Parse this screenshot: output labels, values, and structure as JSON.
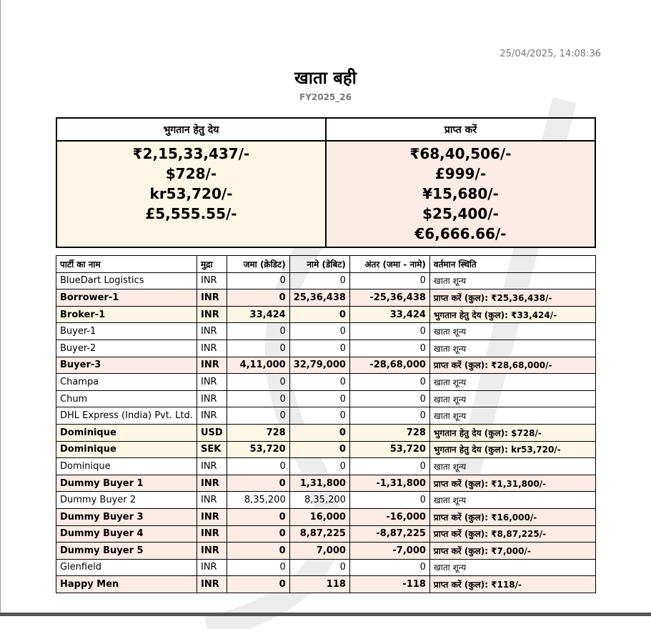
{
  "timestamp": "25/04/2025, 14:08:36",
  "title": "खाता बही",
  "subtitle": "FY2025_26",
  "colors": {
    "payable_bg": "#fdf6e4",
    "receivable_bg": "#fdebe5"
  },
  "summary": {
    "payable_header": "भुगतान हेतु देय",
    "receivable_header": "प्राप्त करें",
    "payable": [
      "₹2,15,33,437/-",
      "$728/-",
      "kr53,720/-",
      "£5,555.55/-"
    ],
    "receivable": [
      "₹68,40,506/-",
      "£999/-",
      "¥15,680/-",
      "$25,400/-",
      "€6,666.66/-"
    ]
  },
  "ledger": {
    "headers": [
      "पार्टी का नाम",
      "मुद्रा",
      "जमा (क्रेडिट)",
      "नामे (डेबिट)",
      "अंतर (जमा - नामे)",
      "वर्तमान स्थिति"
    ],
    "rows": [
      {
        "type": "zero",
        "name": "BlueDart Logistics",
        "currency": "INR",
        "credit": "0",
        "debit": "0",
        "diff": "0",
        "status": "खाता शून्य"
      },
      {
        "type": "receive",
        "name": "Borrower-1",
        "currency": "INR",
        "credit": "0",
        "debit": "25,36,438",
        "diff": "-25,36,438",
        "status": "प्राप्त करें (कुल): ₹25,36,438/-"
      },
      {
        "type": "pay",
        "name": "Broker-1",
        "currency": "INR",
        "credit": "33,424",
        "debit": "0",
        "diff": "33,424",
        "status": "भुगतान हेतु देय (कुल): ₹33,424/-"
      },
      {
        "type": "zero",
        "name": "Buyer-1",
        "currency": "INR",
        "credit": "0",
        "debit": "0",
        "diff": "0",
        "status": "खाता शून्य"
      },
      {
        "type": "zero",
        "name": "Buyer-2",
        "currency": "INR",
        "credit": "0",
        "debit": "0",
        "diff": "0",
        "status": "खाता शून्य"
      },
      {
        "type": "receive",
        "name": "Buyer-3",
        "currency": "INR",
        "credit": "4,11,000",
        "debit": "32,79,000",
        "diff": "-28,68,000",
        "status": "प्राप्त करें (कुल): ₹28,68,000/-"
      },
      {
        "type": "zero",
        "name": "Champa",
        "currency": "INR",
        "credit": "0",
        "debit": "0",
        "diff": "0",
        "status": "खाता शून्य"
      },
      {
        "type": "zero",
        "name": "Chum",
        "currency": "INR",
        "credit": "0",
        "debit": "0",
        "diff": "0",
        "status": "खाता शून्य"
      },
      {
        "type": "zero",
        "name": "DHL Express (India) Pvt. Ltd.",
        "currency": "INR",
        "credit": "0",
        "debit": "0",
        "diff": "0",
        "status": "खाता शून्य"
      },
      {
        "type": "pay",
        "name": "Dominique",
        "currency": "USD",
        "credit": "728",
        "debit": "0",
        "diff": "728",
        "status": "भुगतान हेतु देय (कुल): $728/-"
      },
      {
        "type": "pay",
        "name": "Dominique",
        "currency": "SEK",
        "credit": "53,720",
        "debit": "0",
        "diff": "53,720",
        "status": "भुगतान हेतु देय (कुल): kr53,720/-"
      },
      {
        "type": "zero",
        "name": "Dominique",
        "currency": "INR",
        "credit": "0",
        "debit": "0",
        "diff": "0",
        "status": "खाता शून्य"
      },
      {
        "type": "receive",
        "name": "Dummy Buyer 1",
        "currency": "INR",
        "credit": "0",
        "debit": "1,31,800",
        "diff": "-1,31,800",
        "status": "प्राप्त करें (कुल): ₹1,31,800/-"
      },
      {
        "type": "zero",
        "name": "Dummy Buyer 2",
        "currency": "INR",
        "credit": "8,35,200",
        "debit": "8,35,200",
        "diff": "0",
        "status": "खाता शून्य"
      },
      {
        "type": "receive",
        "name": "Dummy Buyer 3",
        "currency": "INR",
        "credit": "0",
        "debit": "16,000",
        "diff": "-16,000",
        "status": "प्राप्त करें (कुल): ₹16,000/-"
      },
      {
        "type": "receive",
        "name": "Dummy Buyer 4",
        "currency": "INR",
        "credit": "0",
        "debit": "8,87,225",
        "diff": "-8,87,225",
        "status": "प्राप्त करें (कुल): ₹8,87,225/-"
      },
      {
        "type": "receive",
        "name": "Dummy Buyer 5",
        "currency": "INR",
        "credit": "0",
        "debit": "7,000",
        "diff": "-7,000",
        "status": "प्राप्त करें (कुल): ₹7,000/-"
      },
      {
        "type": "zero",
        "name": "Glenfield",
        "currency": "INR",
        "credit": "0",
        "debit": "0",
        "diff": "0",
        "status": "खाता शून्य"
      },
      {
        "type": "receive",
        "name": "Happy Men",
        "currency": "INR",
        "credit": "0",
        "debit": "118",
        "diff": "-118",
        "status": "प्राप्त करें (कुल): ₹118/-"
      }
    ]
  }
}
